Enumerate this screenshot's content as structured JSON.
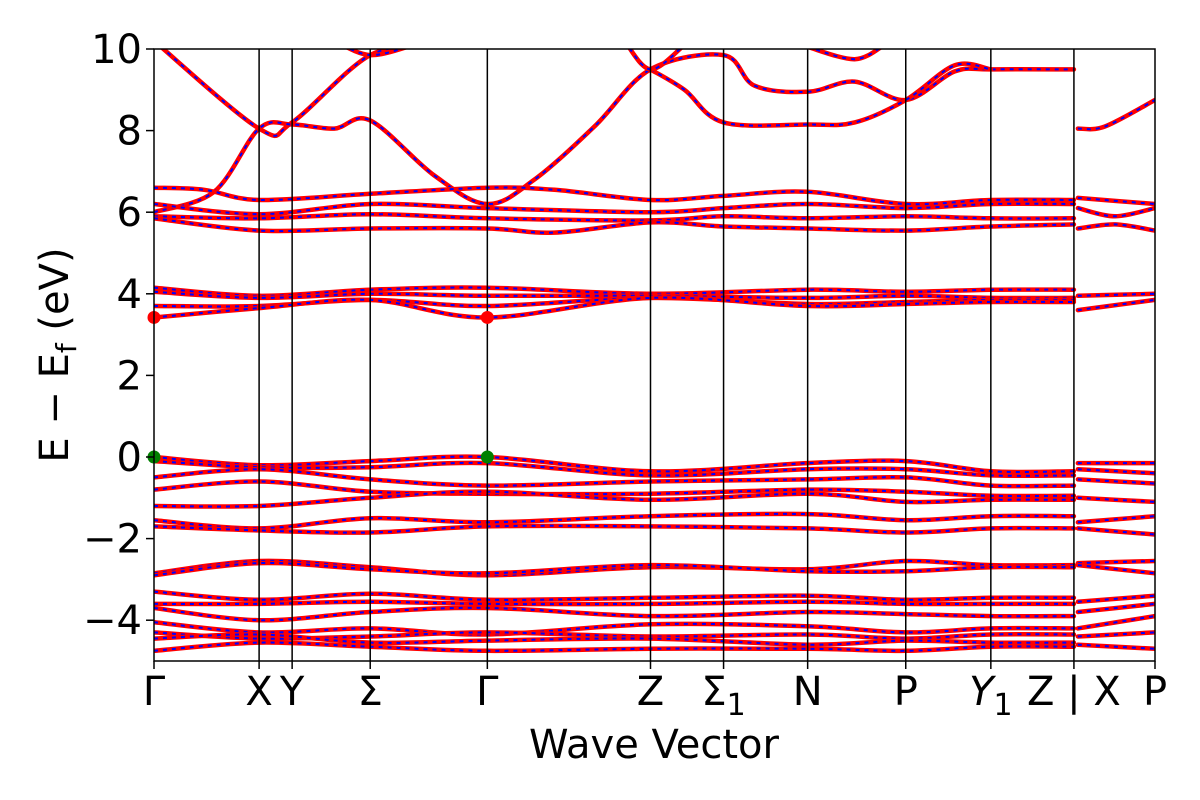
{
  "chart_data": {
    "type": "line",
    "title": "",
    "xlabel": "Wave Vector",
    "ylabel": {
      "main": "E − E",
      "sub": "f",
      "tail": " (eV)"
    },
    "ylim": [
      -5,
      10
    ],
    "yticks": [
      10,
      8,
      6,
      4,
      2,
      0,
      -2,
      -4
    ],
    "ytick_labels": [
      "10",
      "8",
      "6",
      "4",
      "2",
      "0",
      "−2",
      "−4"
    ],
    "kpoints": [
      {
        "label": "Γ",
        "x": 0
      },
      {
        "label": "X",
        "x": 0.105
      },
      {
        "label": "Y",
        "x": 0.138
      },
      {
        "label": "Σ",
        "x": 0.216
      },
      {
        "label": "Γ",
        "x": 0.333
      },
      {
        "label": "Z",
        "x": 0.496
      },
      {
        "label": "Σ",
        "sub": "1",
        "x": 0.569
      },
      {
        "label": "N",
        "x": 0.653
      },
      {
        "label": "P",
        "x": 0.751
      },
      {
        "label": "Y",
        "sub": "1",
        "italic": true,
        "x": 0.836
      },
      {
        "label": "Z | X",
        "x": 0.919
      },
      {
        "label": "P",
        "x": 1.0
      }
    ],
    "gap_after_x": 0.919,
    "series_colors": {
      "line": "#ff0000",
      "dash": "#0000ff"
    },
    "highlight_points": [
      {
        "x": 0,
        "y": 3.42,
        "color": "#ff0000"
      },
      {
        "x": 0.333,
        "y": 3.42,
        "color": "#ff0000"
      },
      {
        "x": 0,
        "y": 0.0,
        "color": "#008000"
      },
      {
        "x": 0.333,
        "y": 0.0,
        "color": "#008000"
      }
    ],
    "bands": [
      [
        [
          0,
          10.2
        ],
        [
          0.105,
          8.05
        ],
        [
          0.138,
          8.2
        ],
        [
          0.216,
          9.85
        ],
        [
          0.28,
          10.05
        ]
      ],
      [
        [
          0.18,
          10.2
        ],
        [
          0.216,
          9.85
        ],
        [
          0.26,
          10.1
        ]
      ],
      [
        [
          0,
          6.0
        ],
        [
          0.06,
          6.5
        ],
        [
          0.105,
          8.05
        ],
        [
          0.138,
          8.15
        ],
        [
          0.18,
          8.05
        ],
        [
          0.216,
          8.25
        ],
        [
          0.28,
          6.9
        ],
        [
          0.333,
          6.2
        ],
        [
          0.38,
          6.8
        ],
        [
          0.44,
          8.1
        ],
        [
          0.496,
          9.5
        ],
        [
          0.569,
          9.85
        ],
        [
          0.6,
          9.1
        ],
        [
          0.653,
          8.95
        ],
        [
          0.7,
          9.2
        ],
        [
          0.751,
          8.75
        ],
        [
          0.8,
          9.45
        ],
        [
          0.836,
          9.5
        ],
        [
          0.919,
          9.5
        ]
      ],
      [
        [
          0.496,
          9.5
        ],
        [
          0.53,
          9.0
        ],
        [
          0.569,
          8.2
        ],
        [
          0.653,
          8.15
        ],
        [
          0.7,
          8.2
        ],
        [
          0.751,
          8.75
        ],
        [
          0.8,
          9.6
        ],
        [
          0.836,
          9.5
        ]
      ],
      [
        [
          0.47,
          10.2
        ],
        [
          0.496,
          9.5
        ],
        [
          0.53,
          10.1
        ]
      ],
      [
        [
          0.653,
          10.05
        ],
        [
          0.7,
          9.75
        ],
        [
          0.73,
          10.1
        ]
      ],
      [
        [
          0.923,
          8.05
        ],
        [
          0.95,
          8.1
        ],
        [
          1.0,
          8.75
        ]
      ],
      [
        [
          0,
          6.6
        ],
        [
          0.05,
          6.55
        ],
        [
          0.105,
          6.3
        ],
        [
          0.216,
          6.45
        ],
        [
          0.333,
          6.6
        ],
        [
          0.4,
          6.55
        ],
        [
          0.496,
          6.3
        ],
        [
          0.569,
          6.4
        ],
        [
          0.653,
          6.5
        ],
        [
          0.751,
          6.2
        ],
        [
          0.836,
          6.3
        ],
        [
          0.919,
          6.3
        ]
      ],
      [
        [
          0,
          6.2
        ],
        [
          0.105,
          5.95
        ],
        [
          0.216,
          6.2
        ],
        [
          0.333,
          6.1
        ],
        [
          0.496,
          6.0
        ],
        [
          0.569,
          6.1
        ],
        [
          0.653,
          6.2
        ],
        [
          0.751,
          6.1
        ],
        [
          0.836,
          6.2
        ],
        [
          0.919,
          6.2
        ]
      ],
      [
        [
          0,
          5.9
        ],
        [
          0.105,
          5.85
        ],
        [
          0.216,
          5.95
        ],
        [
          0.333,
          5.85
        ],
        [
          0.496,
          5.8
        ],
        [
          0.569,
          5.9
        ],
        [
          0.653,
          5.85
        ],
        [
          0.751,
          5.9
        ],
        [
          0.836,
          5.85
        ],
        [
          0.919,
          5.85
        ]
      ],
      [
        [
          0,
          5.85
        ],
        [
          0.105,
          5.55
        ],
        [
          0.216,
          5.6
        ],
        [
          0.333,
          5.6
        ],
        [
          0.4,
          5.5
        ],
        [
          0.496,
          5.75
        ],
        [
          0.569,
          5.65
        ],
        [
          0.653,
          5.6
        ],
        [
          0.751,
          5.55
        ],
        [
          0.836,
          5.65
        ],
        [
          0.919,
          5.7
        ]
      ],
      [
        [
          0.923,
          6.35
        ],
        [
          1.0,
          6.2
        ]
      ],
      [
        [
          0.923,
          6.1
        ],
        [
          0.96,
          5.9
        ],
        [
          1.0,
          6.1
        ]
      ],
      [
        [
          0.923,
          5.6
        ],
        [
          0.96,
          5.7
        ],
        [
          1.0,
          5.55
        ]
      ],
      [
        [
          0,
          4.15
        ],
        [
          0.105,
          3.95
        ],
        [
          0.216,
          4.1
        ],
        [
          0.333,
          4.15
        ],
        [
          0.496,
          4.0
        ],
        [
          0.653,
          4.1
        ],
        [
          0.751,
          4.05
        ],
        [
          0.836,
          4.1
        ],
        [
          0.919,
          4.1
        ]
      ],
      [
        [
          0,
          4.05
        ],
        [
          0.105,
          3.9
        ],
        [
          0.216,
          4.0
        ],
        [
          0.333,
          3.95
        ],
        [
          0.496,
          3.95
        ],
        [
          0.653,
          3.9
        ],
        [
          0.751,
          3.95
        ],
        [
          0.836,
          3.9
        ],
        [
          0.919,
          3.9
        ]
      ],
      [
        [
          0,
          3.7
        ],
        [
          0.105,
          3.7
        ],
        [
          0.216,
          3.85
        ],
        [
          0.333,
          3.7
        ],
        [
          0.496,
          3.9
        ],
        [
          0.653,
          3.75
        ],
        [
          0.751,
          3.8
        ],
        [
          0.836,
          3.85
        ],
        [
          0.919,
          3.85
        ]
      ],
      [
        [
          0,
          3.42
        ],
        [
          0.105,
          3.65
        ],
        [
          0.216,
          3.85
        ],
        [
          0.333,
          3.42
        ],
        [
          0.496,
          3.9
        ],
        [
          0.653,
          3.7
        ],
        [
          0.751,
          3.75
        ],
        [
          0.836,
          3.8
        ],
        [
          0.919,
          3.8
        ]
      ],
      [
        [
          0.923,
          3.95
        ],
        [
          1.0,
          4.0
        ]
      ],
      [
        [
          0.923,
          3.6
        ],
        [
          1.0,
          3.85
        ]
      ],
      [
        [
          0,
          0.0
        ],
        [
          0.105,
          -0.2
        ],
        [
          0.216,
          -0.1
        ],
        [
          0.333,
          0.0
        ],
        [
          0.496,
          -0.35
        ],
        [
          0.653,
          -0.15
        ],
        [
          0.751,
          -0.1
        ],
        [
          0.836,
          -0.35
        ],
        [
          0.919,
          -0.35
        ]
      ],
      [
        [
          0,
          -0.1
        ],
        [
          0.105,
          -0.25
        ],
        [
          0.216,
          -0.25
        ],
        [
          0.333,
          -0.15
        ],
        [
          0.496,
          -0.45
        ],
        [
          0.653,
          -0.3
        ],
        [
          0.751,
          -0.3
        ],
        [
          0.836,
          -0.45
        ],
        [
          0.919,
          -0.45
        ]
      ],
      [
        [
          0,
          -0.5
        ],
        [
          0.105,
          -0.3
        ],
        [
          0.216,
          -0.55
        ],
        [
          0.333,
          -0.7
        ],
        [
          0.496,
          -0.6
        ],
        [
          0.653,
          -0.55
        ],
        [
          0.751,
          -0.5
        ],
        [
          0.836,
          -0.7
        ],
        [
          0.919,
          -0.7
        ]
      ],
      [
        [
          0,
          -0.8
        ],
        [
          0.105,
          -0.6
        ],
        [
          0.216,
          -0.85
        ],
        [
          0.333,
          -0.9
        ],
        [
          0.496,
          -0.9
        ],
        [
          0.653,
          -0.8
        ],
        [
          0.751,
          -0.85
        ],
        [
          0.836,
          -0.95
        ],
        [
          0.919,
          -0.95
        ]
      ],
      [
        [
          0,
          -1.2
        ],
        [
          0.105,
          -1.2
        ],
        [
          0.216,
          -1.0
        ],
        [
          0.333,
          -0.85
        ],
        [
          0.496,
          -1.05
        ],
        [
          0.653,
          -0.9
        ],
        [
          0.751,
          -1.1
        ],
        [
          0.836,
          -1.05
        ],
        [
          0.919,
          -1.05
        ]
      ],
      [
        [
          0,
          -1.55
        ],
        [
          0.105,
          -1.75
        ],
        [
          0.216,
          -1.5
        ],
        [
          0.333,
          -1.6
        ],
        [
          0.496,
          -1.45
        ],
        [
          0.653,
          -1.4
        ],
        [
          0.751,
          -1.55
        ],
        [
          0.836,
          -1.45
        ],
        [
          0.919,
          -1.45
        ]
      ],
      [
        [
          0,
          -1.7
        ],
        [
          0.105,
          -1.8
        ],
        [
          0.216,
          -1.85
        ],
        [
          0.333,
          -1.7
        ],
        [
          0.496,
          -1.7
        ],
        [
          0.653,
          -1.75
        ],
        [
          0.751,
          -1.85
        ],
        [
          0.836,
          -1.75
        ],
        [
          0.919,
          -1.75
        ]
      ],
      [
        [
          0.923,
          -0.15
        ],
        [
          1.0,
          -0.15
        ]
      ],
      [
        [
          0.923,
          -0.3
        ],
        [
          1.0,
          -0.4
        ]
      ],
      [
        [
          0.923,
          -0.55
        ],
        [
          1.0,
          -0.65
        ]
      ],
      [
        [
          0.923,
          -1.0
        ],
        [
          1.0,
          -1.1
        ]
      ],
      [
        [
          0.923,
          -1.6
        ],
        [
          1.0,
          -1.45
        ]
      ],
      [
        [
          0.923,
          -1.75
        ],
        [
          1.0,
          -1.9
        ]
      ],
      [
        [
          0,
          -2.85
        ],
        [
          0.105,
          -2.55
        ],
        [
          0.216,
          -2.7
        ],
        [
          0.333,
          -2.9
        ],
        [
          0.496,
          -2.7
        ],
        [
          0.653,
          -2.75
        ],
        [
          0.751,
          -2.55
        ],
        [
          0.836,
          -2.65
        ],
        [
          0.919,
          -2.65
        ]
      ],
      [
        [
          0,
          -2.9
        ],
        [
          0.105,
          -2.6
        ],
        [
          0.216,
          -2.75
        ],
        [
          0.333,
          -2.85
        ],
        [
          0.496,
          -2.65
        ],
        [
          0.653,
          -2.8
        ],
        [
          0.751,
          -2.8
        ],
        [
          0.836,
          -2.7
        ],
        [
          0.919,
          -2.7
        ]
      ],
      [
        [
          0.923,
          -2.6
        ],
        [
          1.0,
          -2.55
        ]
      ],
      [
        [
          0.923,
          -2.65
        ],
        [
          1.0,
          -2.85
        ]
      ],
      [
        [
          0,
          -3.3
        ],
        [
          0.105,
          -3.5
        ],
        [
          0.216,
          -3.35
        ],
        [
          0.333,
          -3.5
        ],
        [
          0.496,
          -3.45
        ],
        [
          0.653,
          -3.4
        ],
        [
          0.751,
          -3.5
        ],
        [
          0.836,
          -3.45
        ],
        [
          0.919,
          -3.45
        ]
      ],
      [
        [
          0,
          -3.6
        ],
        [
          0.105,
          -3.6
        ],
        [
          0.216,
          -3.55
        ],
        [
          0.333,
          -3.6
        ],
        [
          0.496,
          -3.6
        ],
        [
          0.653,
          -3.55
        ],
        [
          0.751,
          -3.6
        ],
        [
          0.836,
          -3.6
        ],
        [
          0.919,
          -3.6
        ]
      ],
      [
        [
          0,
          -3.7
        ],
        [
          0.105,
          -4.0
        ],
        [
          0.216,
          -3.8
        ],
        [
          0.333,
          -3.7
        ],
        [
          0.496,
          -3.9
        ],
        [
          0.653,
          -3.8
        ],
        [
          0.751,
          -3.85
        ],
        [
          0.836,
          -3.9
        ],
        [
          0.919,
          -3.9
        ]
      ],
      [
        [
          0,
          -4.05
        ],
        [
          0.105,
          -4.3
        ],
        [
          0.216,
          -4.2
        ],
        [
          0.333,
          -4.35
        ],
        [
          0.496,
          -4.1
        ],
        [
          0.653,
          -4.15
        ],
        [
          0.751,
          -4.3
        ],
        [
          0.836,
          -4.2
        ],
        [
          0.919,
          -4.2
        ]
      ],
      [
        [
          0,
          -4.3
        ],
        [
          0.105,
          -4.45
        ],
        [
          0.216,
          -4.4
        ],
        [
          0.333,
          -4.3
        ],
        [
          0.496,
          -4.4
        ],
        [
          0.653,
          -4.35
        ],
        [
          0.751,
          -4.45
        ],
        [
          0.836,
          -4.35
        ],
        [
          0.919,
          -4.35
        ]
      ],
      [
        [
          0,
          -4.45
        ],
        [
          0.105,
          -4.35
        ],
        [
          0.216,
          -4.55
        ],
        [
          0.333,
          -4.5
        ],
        [
          0.496,
          -4.45
        ],
        [
          0.653,
          -4.6
        ],
        [
          0.751,
          -4.5
        ],
        [
          0.836,
          -4.55
        ],
        [
          0.919,
          -4.55
        ]
      ],
      [
        [
          0,
          -4.75
        ],
        [
          0.105,
          -4.55
        ],
        [
          0.216,
          -4.65
        ],
        [
          0.333,
          -4.75
        ],
        [
          0.496,
          -4.7
        ],
        [
          0.653,
          -4.7
        ],
        [
          0.751,
          -4.75
        ],
        [
          0.836,
          -4.65
        ],
        [
          0.919,
          -4.65
        ]
      ],
      [
        [
          0.923,
          -3.55
        ],
        [
          1.0,
          -3.4
        ]
      ],
      [
        [
          0.923,
          -3.8
        ],
        [
          1.0,
          -3.6
        ]
      ],
      [
        [
          0.923,
          -4.2
        ],
        [
          1.0,
          -3.9
        ]
      ],
      [
        [
          0.923,
          -4.4
        ],
        [
          1.0,
          -4.3
        ]
      ],
      [
        [
          0.923,
          -4.6
        ],
        [
          1.0,
          -4.7
        ]
      ]
    ]
  }
}
